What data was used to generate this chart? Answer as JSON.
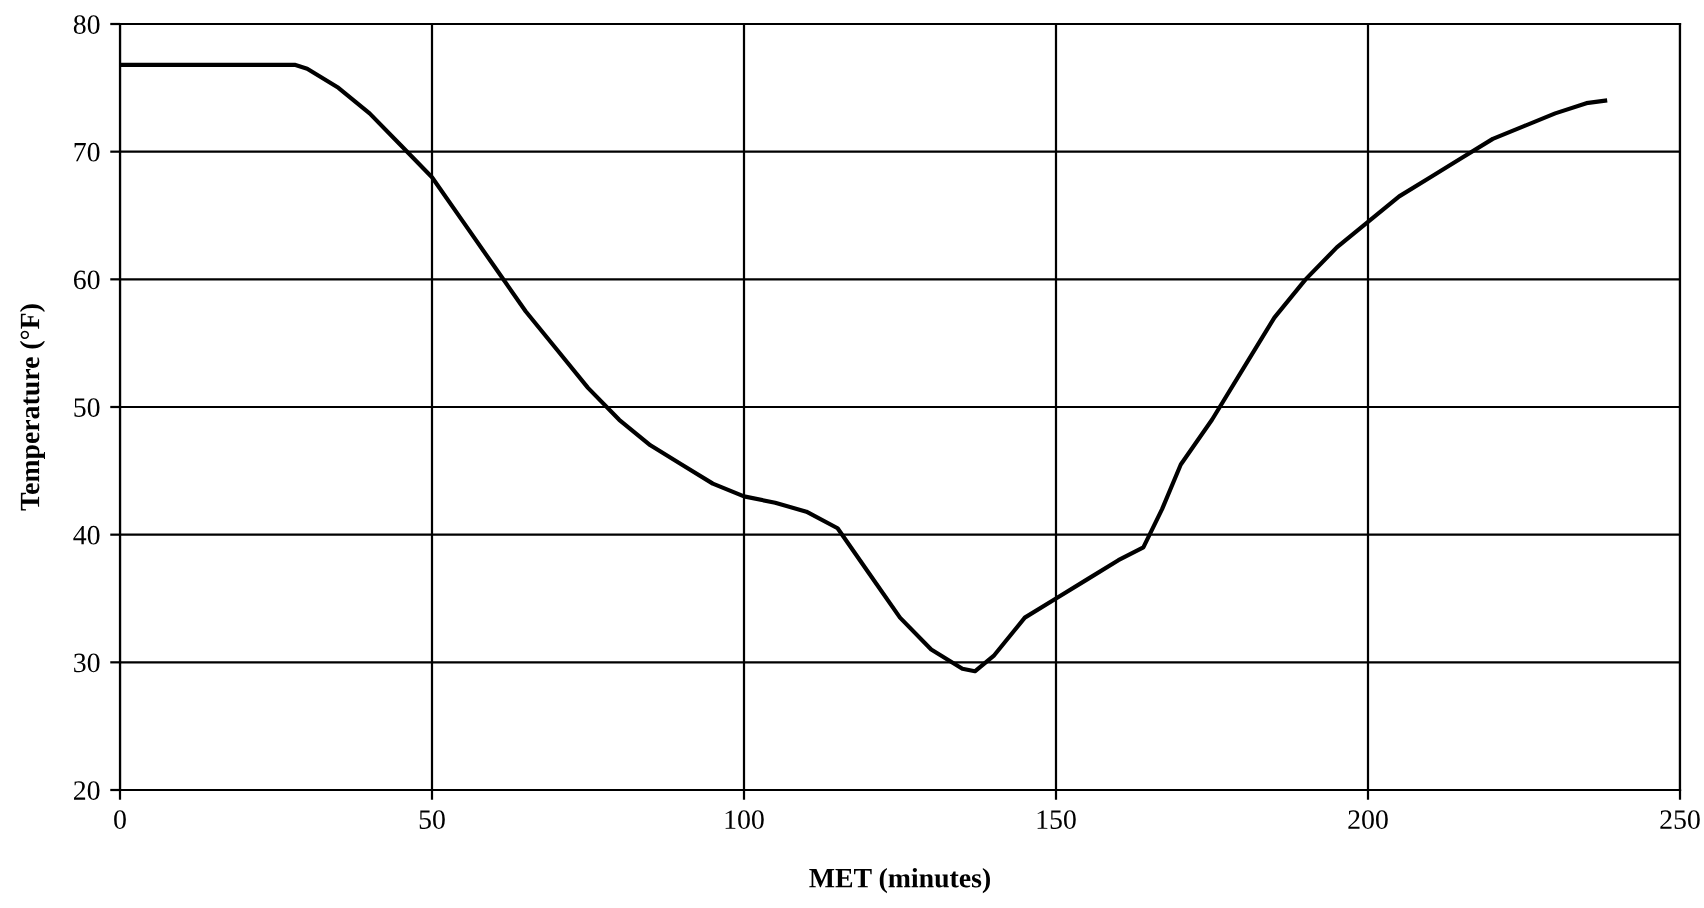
{
  "chart_data": {
    "type": "line",
    "xlabel": "MET (minutes)",
    "ylabel": "Temperature (°F)",
    "x": [
      0,
      28,
      30,
      35,
      40,
      45,
      50,
      55,
      60,
      65,
      70,
      75,
      80,
      85,
      90,
      95,
      100,
      105,
      110,
      115,
      120,
      125,
      130,
      135,
      137,
      140,
      145,
      150,
      155,
      160,
      164,
      167,
      170,
      175,
      180,
      185,
      190,
      195,
      200,
      205,
      210,
      215,
      220,
      225,
      230,
      235,
      238
    ],
    "series": [
      {
        "color": "#000000",
        "values": [
          76.8,
          76.8,
          76.5,
          75,
          73,
          70.5,
          68,
          64.5,
          61,
          57.5,
          54.5,
          51.5,
          49,
          47,
          45.5,
          44,
          43,
          42.5,
          41.8,
          40.5,
          37,
          33.5,
          31,
          29.5,
          29.3,
          30.5,
          33.5,
          35,
          36.5,
          38,
          39,
          42,
          45.5,
          49,
          53,
          57,
          60,
          62.5,
          64.5,
          66.5,
          68,
          69.5,
          71,
          72,
          73,
          73.8,
          74
        ]
      }
    ],
    "xlim": [
      0,
      250
    ],
    "xticks": [
      0,
      50,
      100,
      150,
      200,
      250
    ],
    "ylim": [
      20,
      80
    ],
    "yticks": [
      20,
      30,
      40,
      50,
      60,
      70,
      80
    ],
    "grid": true,
    "legend": false,
    "marker": "none",
    "line_style": "solid"
  }
}
